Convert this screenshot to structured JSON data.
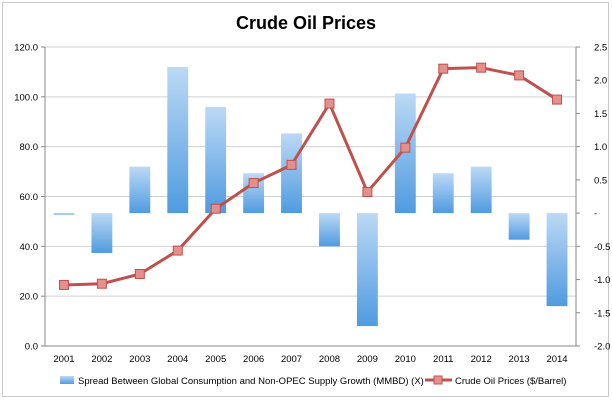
{
  "chart_data": {
    "type": "bar+line",
    "title": "Crude Oil Prices",
    "categories": [
      "2001",
      "2002",
      "2003",
      "2004",
      "2005",
      "2006",
      "2007",
      "2008",
      "2009",
      "2010",
      "2011",
      "2012",
      "2013",
      "2014"
    ],
    "series": [
      {
        "name": "Spread Between Global Consumption and Non-OPEC Supply Growth (MMBD) (X)",
        "type": "bar",
        "axis": "right",
        "values": [
          -0.02,
          -0.6,
          0.7,
          2.2,
          1.6,
          0.6,
          1.2,
          -0.5,
          -1.7,
          1.8,
          0.6,
          0.7,
          -0.4,
          -1.4
        ]
      },
      {
        "name": "Crude Oil Prices ($/Barrel)",
        "type": "line",
        "axis": "left",
        "values": [
          24.5,
          25.0,
          28.9,
          38.3,
          55.1,
          65.4,
          72.7,
          97.3,
          61.8,
          79.6,
          111.3,
          111.7,
          108.6,
          98.9
        ]
      }
    ],
    "y_left": {
      "ylim": [
        0,
        120
      ],
      "ticks": [
        "0.0",
        "20.0",
        "40.0",
        "60.0",
        "80.0",
        "100.0",
        "120.0"
      ]
    },
    "y_right": {
      "ylim": [
        -2.0,
        2.5
      ],
      "ticks": [
        "-2.0",
        "-1.5",
        "-1.0",
        "-0.5",
        "-",
        "0.5",
        "1.0",
        "1.5",
        "2.0",
        "2.5"
      ]
    },
    "grid": true,
    "legend": "bottom",
    "colors": {
      "bar_top": "#bcd9f5",
      "bar_bottom": "#4f9be0",
      "line": "#c0504d",
      "marker_fill": "#e3908d",
      "grid": "#d0d0d0"
    }
  }
}
